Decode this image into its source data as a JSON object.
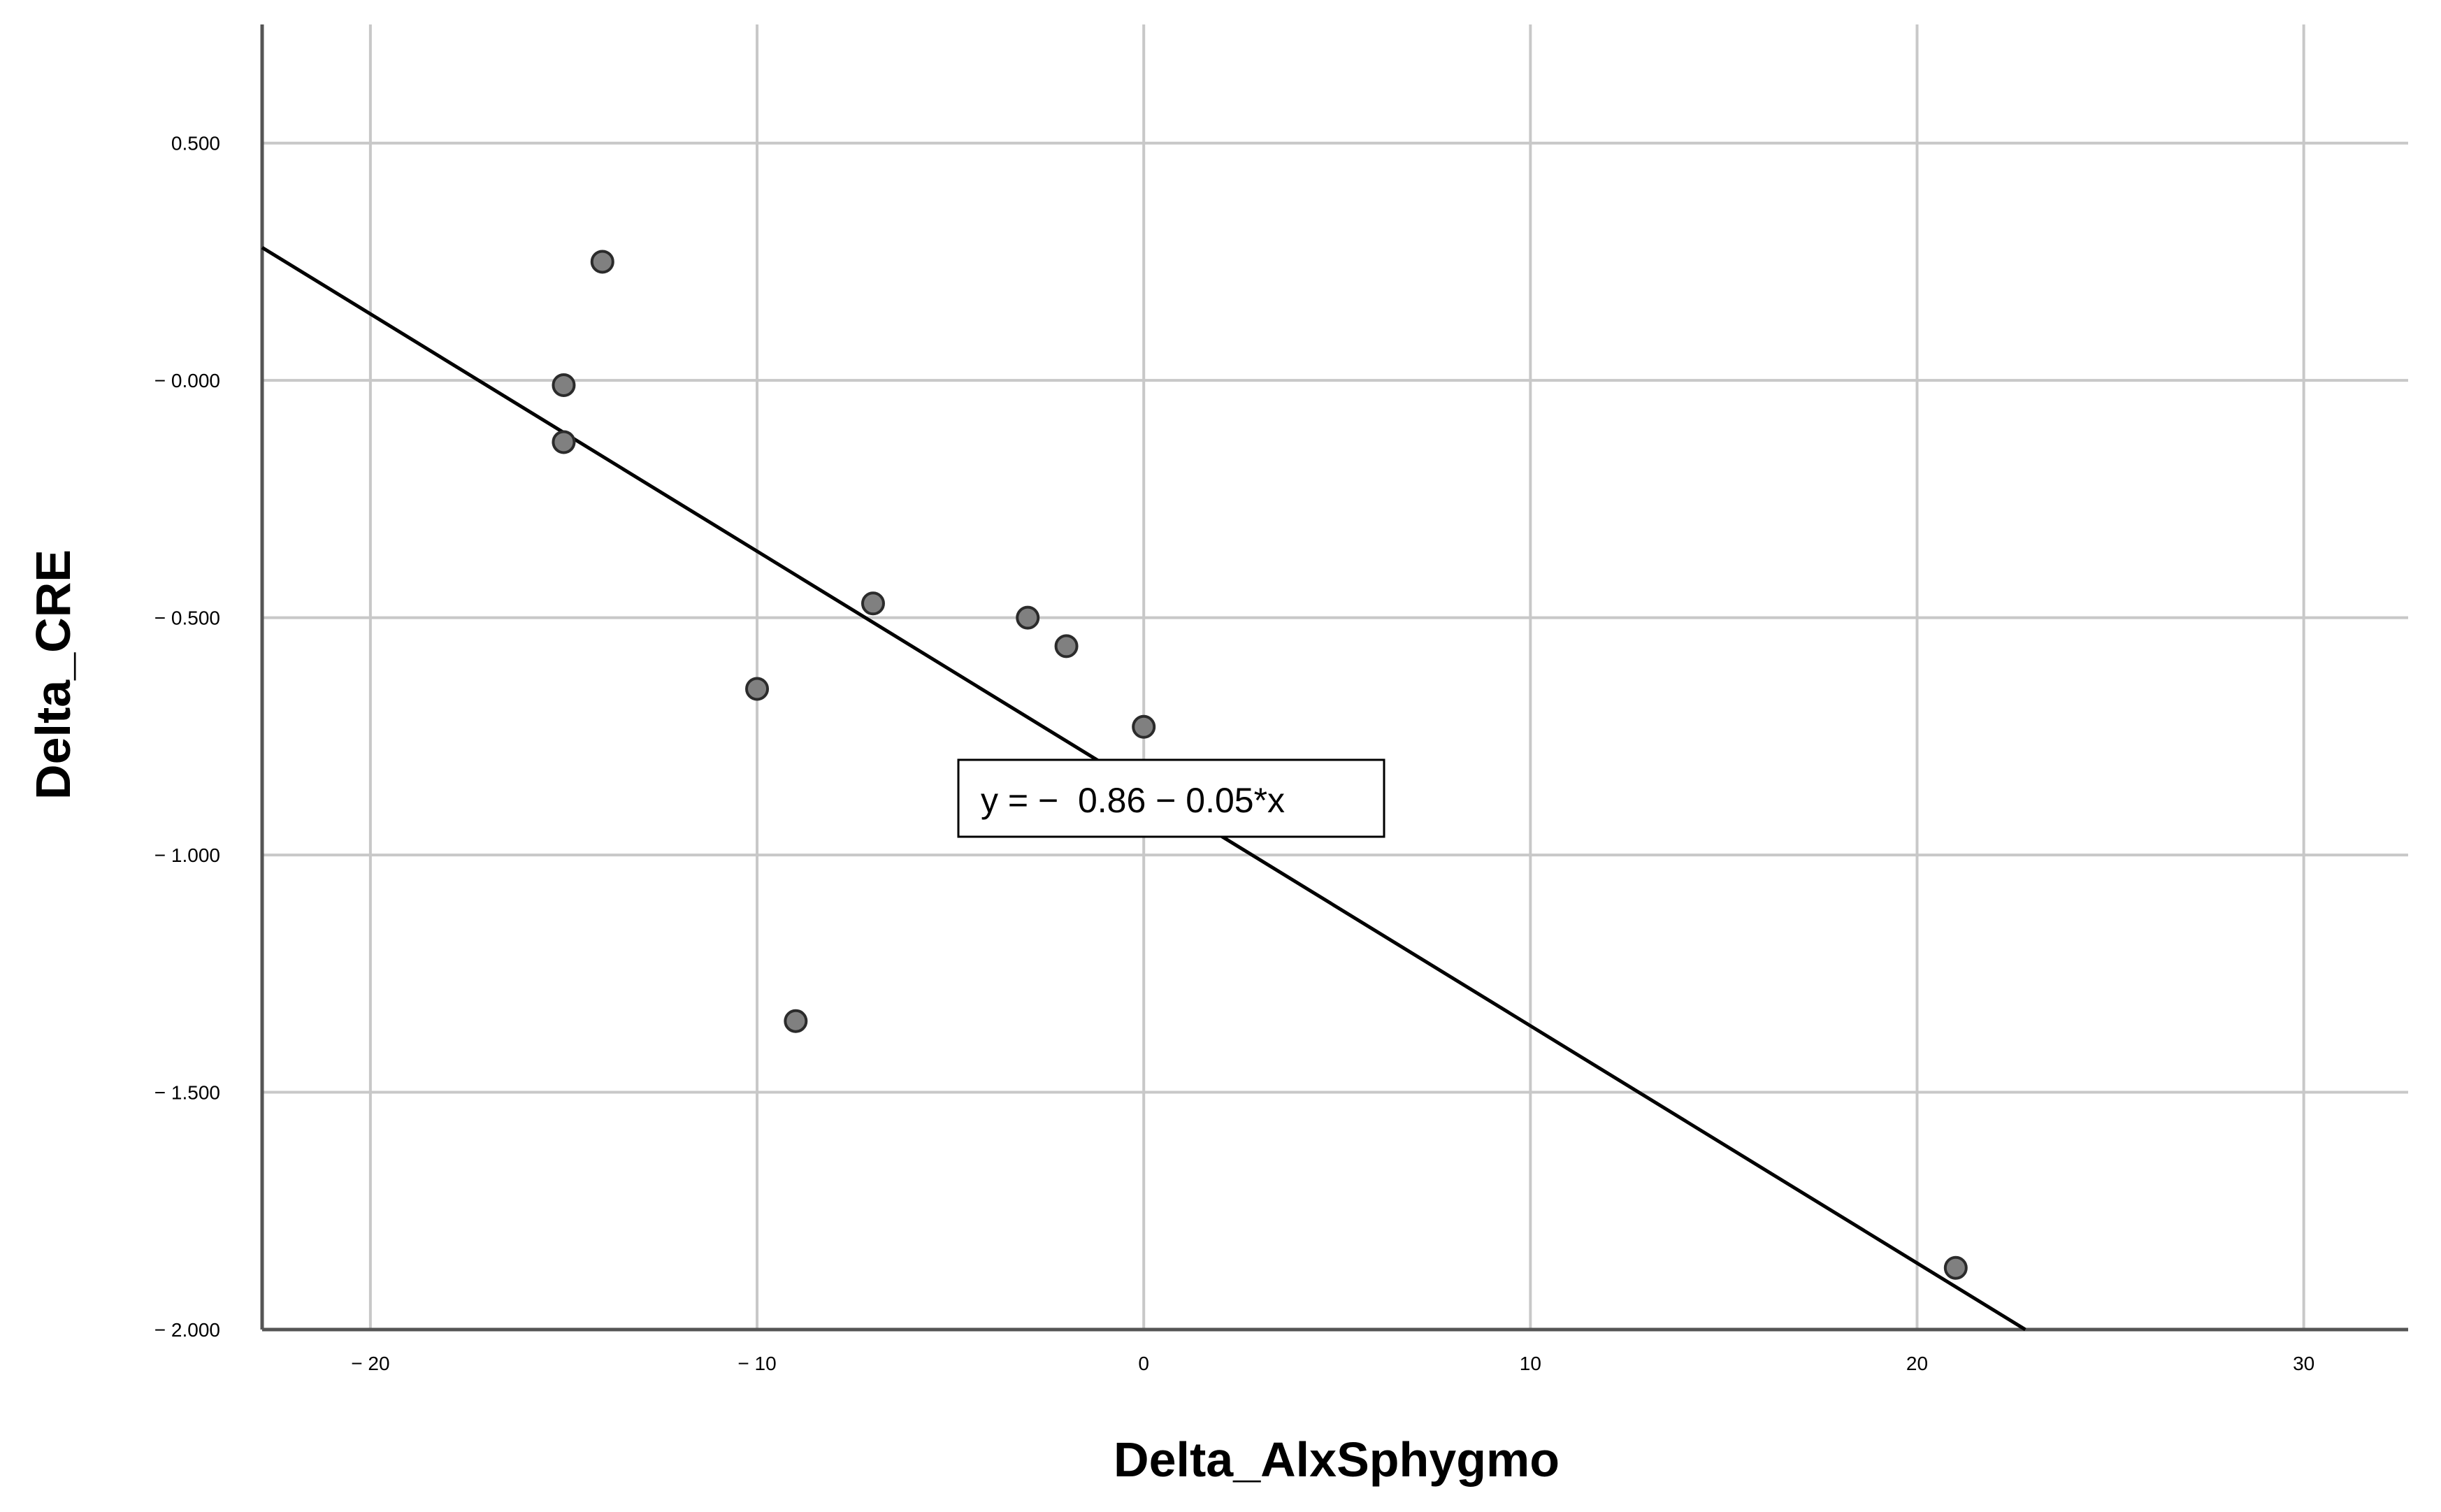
{
  "chart_data": {
    "type": "scatter",
    "xlabel": "Delta_AlxSphygmo",
    "ylabel": "Delta_CRE",
    "xlim": [
      -22.8,
      32.7
    ],
    "ylim": [
      -2.0,
      0.75
    ],
    "x_ticks": [
      -20,
      -10,
      0,
      10,
      20,
      30
    ],
    "x_tick_labels": [
      "− 20",
      "− 10",
      "0",
      "10",
      "20",
      "30"
    ],
    "y_ticks": [
      0.5,
      0.0,
      -0.5,
      -1.0,
      -1.5,
      -2.0
    ],
    "y_tick_labels": [
      "0.500",
      "− 0.000",
      "− 0.500",
      "− 1.000",
      "− 1.500",
      "− 2.000"
    ],
    "grid": true,
    "series": [
      {
        "points": [
          {
            "x": -14,
            "y": 0.25
          },
          {
            "x": -15,
            "y": -0.01
          },
          {
            "x": -15,
            "y": -0.13
          },
          {
            "x": -7,
            "y": -0.47
          },
          {
            "x": -3,
            "y": -0.5
          },
          {
            "x": -2,
            "y": -0.56
          },
          {
            "x": -10,
            "y": -0.65
          },
          {
            "x": 0,
            "y": -0.73
          },
          {
            "x": -9,
            "y": -1.35
          },
          {
            "x": 21,
            "y": -1.87
          }
        ]
      }
    ],
    "fit_line": {
      "intercept": -0.86,
      "slope": -0.05
    },
    "annotation": {
      "text": "y = −  0.86 − 0.05*x"
    },
    "colors": {
      "point_fill": "#808080",
      "point_stroke": "#2b2b2b",
      "grid": "#c8c8c8",
      "line": "#000000"
    }
  }
}
